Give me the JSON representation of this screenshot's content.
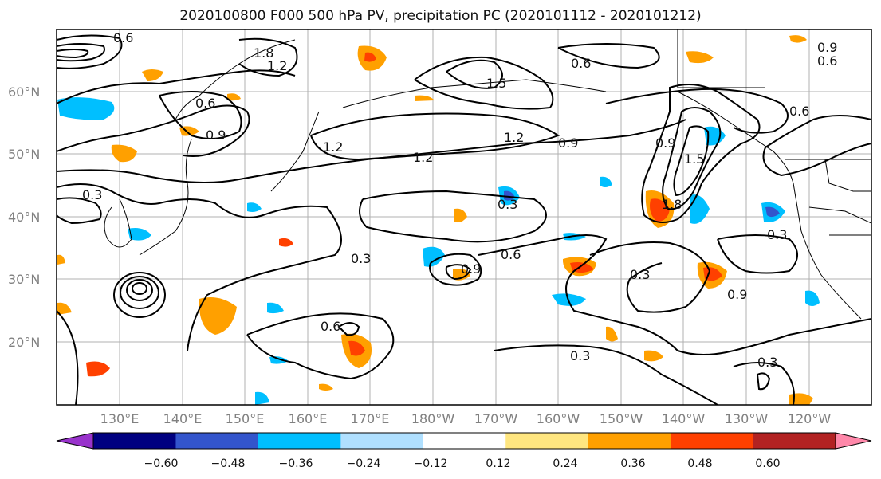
{
  "title": "2020100800 F000 500 hPa PV, precipitation PC (2020101112 - 2020101212)",
  "map": {
    "lat_labels": [
      "60°N",
      "50°N",
      "40°N",
      "30°N",
      "20°N"
    ],
    "lon_labels": [
      "130°E",
      "140°E",
      "150°E",
      "160°E",
      "170°E",
      "180°W",
      "170°W",
      "160°W",
      "150°W",
      "140°W",
      "130°W",
      "120°W"
    ],
    "pv_contour_labels": [
      "0.6",
      "1.8",
      "1.2",
      "1.5",
      "0.6",
      "0.9",
      "0.6",
      "0.9",
      "0.6",
      "1.2",
      "1.2",
      "0.9",
      "0.9",
      "0.3",
      "0.3",
      "0.6",
      "0.9",
      "0.3",
      "0.3",
      "0.6",
      "0.3",
      "0.3",
      "1.2",
      "0.6",
      "1.8",
      "0.9",
      "1.5",
      "0.3"
    ]
  },
  "colorbar": {
    "tick_labels": [
      "−0.60",
      "−0.48",
      "−0.36",
      "−0.24",
      "−0.12",
      "0.12",
      "0.24",
      "0.36",
      "0.48",
      "0.60"
    ],
    "colors": [
      "#9933cc",
      "#000080",
      "#3355cc",
      "#00bfff",
      "#b0e0ff",
      "#ffffff",
      "#ffe680",
      "#ffa000",
      "#ff4000",
      "#b22222",
      "#ff88aa"
    ]
  }
}
